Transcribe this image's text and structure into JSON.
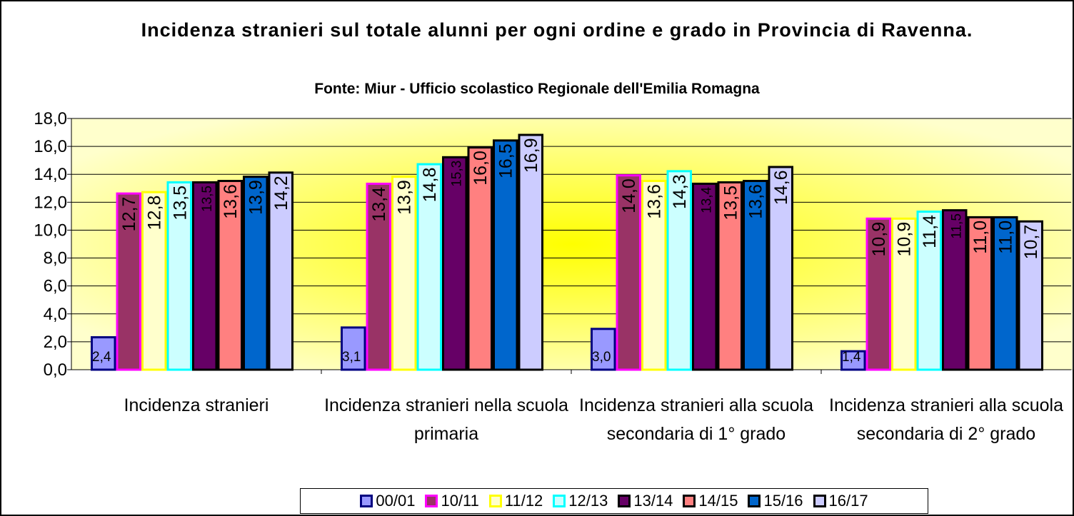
{
  "chart_data": {
    "type": "bar",
    "title": "Incidenza stranieri sul totale alunni per ogni ordine e grado in Provincia di Ravenna.",
    "subtitle": "Fonte: Miur - Ufficio scolastico Regionale dell'Emilia Romagna",
    "categories": [
      "Incidenza stranieri",
      "Incidenza stranieri nella scuola primaria",
      "Incidenza stranieri alla scuola secondaria di 1° grado",
      "Incidenza stranieri alla scuola secondaria di 2° grado"
    ],
    "series": [
      {
        "name": "00/01",
        "color": "#9999ff",
        "border": "#000080",
        "values": [
          2.4,
          3.1,
          3.0,
          1.4
        ],
        "value_labels": [
          "2,4",
          "3,1",
          "3,0",
          "1,4"
        ]
      },
      {
        "name": "10/11",
        "color": "#993366",
        "border": "#ff00ff",
        "values": [
          12.7,
          13.4,
          14.0,
          10.9
        ],
        "value_labels": [
          "12,7",
          "13,4",
          "14,0",
          "10,9"
        ]
      },
      {
        "name": "11/12",
        "color": "#ffffcc",
        "border": "#ffff00",
        "values": [
          12.8,
          13.9,
          13.6,
          10.9
        ],
        "value_labels": [
          "12,8",
          "13,9",
          "13,6",
          "10,9"
        ]
      },
      {
        "name": "12/13",
        "color": "#ccffff",
        "border": "#00ffff",
        "values": [
          13.5,
          14.8,
          14.3,
          11.4
        ],
        "value_labels": [
          "13,5",
          "14,8",
          "14,3",
          "11,4"
        ]
      },
      {
        "name": "13/14",
        "color": "#660066",
        "border": "#000000",
        "values": [
          13.5,
          15.3,
          13.4,
          11.5
        ],
        "value_labels": [
          "13,5",
          "15,3",
          "13,4",
          "11,5"
        ]
      },
      {
        "name": "14/15",
        "color": "#ff8080",
        "border": "#000000",
        "values": [
          13.6,
          16.0,
          13.5,
          11.0
        ],
        "value_labels": [
          "13,6",
          "16,0",
          "13,5",
          "11,0"
        ]
      },
      {
        "name": "15/16",
        "color": "#0066cc",
        "border": "#000000",
        "values": [
          13.9,
          16.5,
          13.6,
          11.0
        ],
        "value_labels": [
          "13,9",
          "16,5",
          "13,6",
          "11,0"
        ]
      },
      {
        "name": "16/17",
        "color": "#ccccff",
        "border": "#000000",
        "values": [
          14.2,
          16.9,
          14.6,
          10.7
        ],
        "value_labels": [
          "14,2",
          "16,9",
          "14,6",
          "10,7"
        ]
      }
    ],
    "ylim": [
      0,
      18
    ],
    "yticks": [
      {
        "value": 0,
        "label": "0,0"
      },
      {
        "value": 2,
        "label": "2,0"
      },
      {
        "value": 4,
        "label": "4,0"
      },
      {
        "value": 6,
        "label": "6,0"
      },
      {
        "value": 8,
        "label": "8,0"
      },
      {
        "value": 10,
        "label": "10,0"
      },
      {
        "value": 12,
        "label": "12,0"
      },
      {
        "value": 14,
        "label": "14,0"
      },
      {
        "value": 16,
        "label": "16,0"
      },
      {
        "value": 18,
        "label": "18,0"
      }
    ],
    "grid": true,
    "legend": "bottom"
  }
}
